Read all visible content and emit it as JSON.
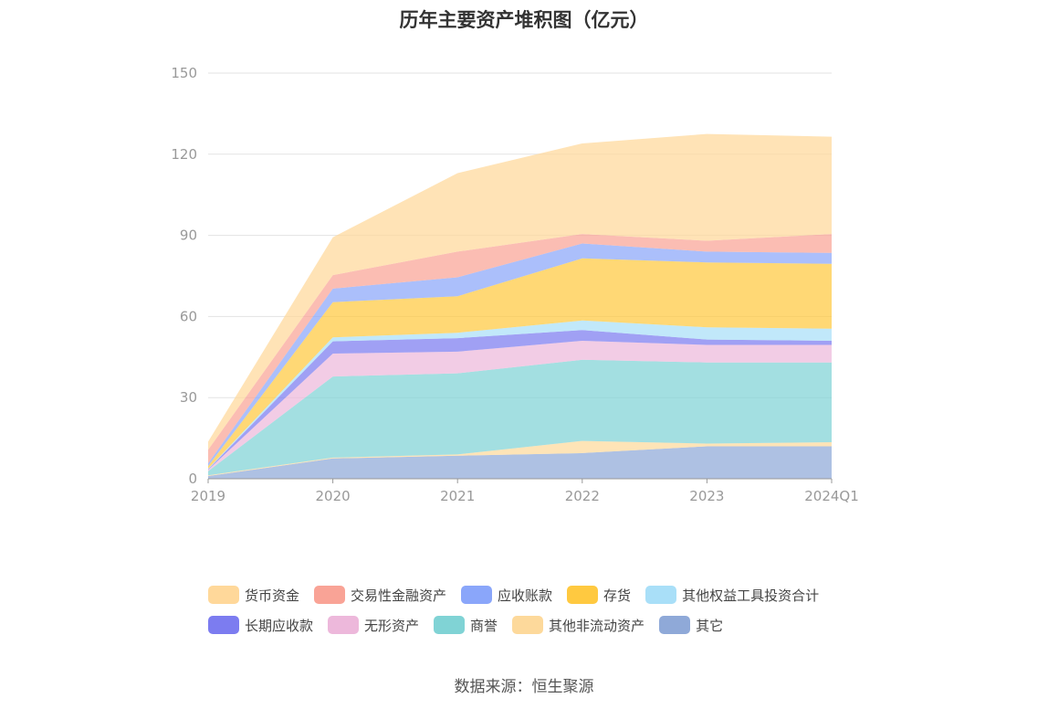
{
  "chart_data": {
    "type": "area",
    "stacked": true,
    "title": "历年主要资产堆积图（亿元）",
    "x": [
      "2019",
      "2020",
      "2021",
      "2022",
      "2023",
      "2024Q1"
    ],
    "ylim": [
      0,
      150
    ],
    "yticks": [
      0,
      30,
      60,
      90,
      120,
      150
    ],
    "grid": true,
    "legend_position": "bottom",
    "series": [
      {
        "name": "其它",
        "color": "#8FA9D8",
        "values": [
          1,
          7.5,
          8.5,
          9.5,
          12,
          12
        ]
      },
      {
        "name": "其他非流动资产",
        "color": "#FDD99B",
        "values": [
          0.3,
          0.3,
          0.5,
          4.5,
          1,
          1.5
        ]
      },
      {
        "name": "商誉",
        "color": "#80D3D5",
        "values": [
          1.5,
          30,
          30,
          30,
          30,
          29.5
        ]
      },
      {
        "name": "无形资产",
        "color": "#EDB8DB",
        "values": [
          0.5,
          8.5,
          8,
          7,
          6.5,
          6.5
        ]
      },
      {
        "name": "长期应收款",
        "color": "#7C7CF0",
        "values": [
          0.2,
          4.5,
          5,
          4,
          2,
          1.5
        ]
      },
      {
        "name": "其他权益工具投资合计",
        "color": "#A9DFF8",
        "values": [
          0.2,
          1.5,
          2,
          3.5,
          4.5,
          4.5
        ]
      },
      {
        "name": "存货",
        "color": "#FFC940",
        "values": [
          1,
          13,
          13.5,
          23,
          24,
          24
        ]
      },
      {
        "name": "应收账款",
        "color": "#8AA6FA",
        "values": [
          1,
          5,
          7,
          5.5,
          4,
          4
        ]
      },
      {
        "name": "交易性金融资产",
        "color": "#F9A396",
        "values": [
          5,
          5,
          9.5,
          3.5,
          4,
          7
        ]
      },
      {
        "name": "货币资金",
        "color": "#FFD89A",
        "values": [
          3,
          14,
          29,
          33.5,
          39.5,
          36
        ]
      }
    ],
    "legend_order": [
      "货币资金",
      "交易性金融资产",
      "应收账款",
      "存货",
      "其他权益工具投资合计",
      "长期应收款",
      "无形资产",
      "商誉",
      "其他非流动资产",
      "其它"
    ]
  },
  "source_text": "数据来源：恒生聚源"
}
